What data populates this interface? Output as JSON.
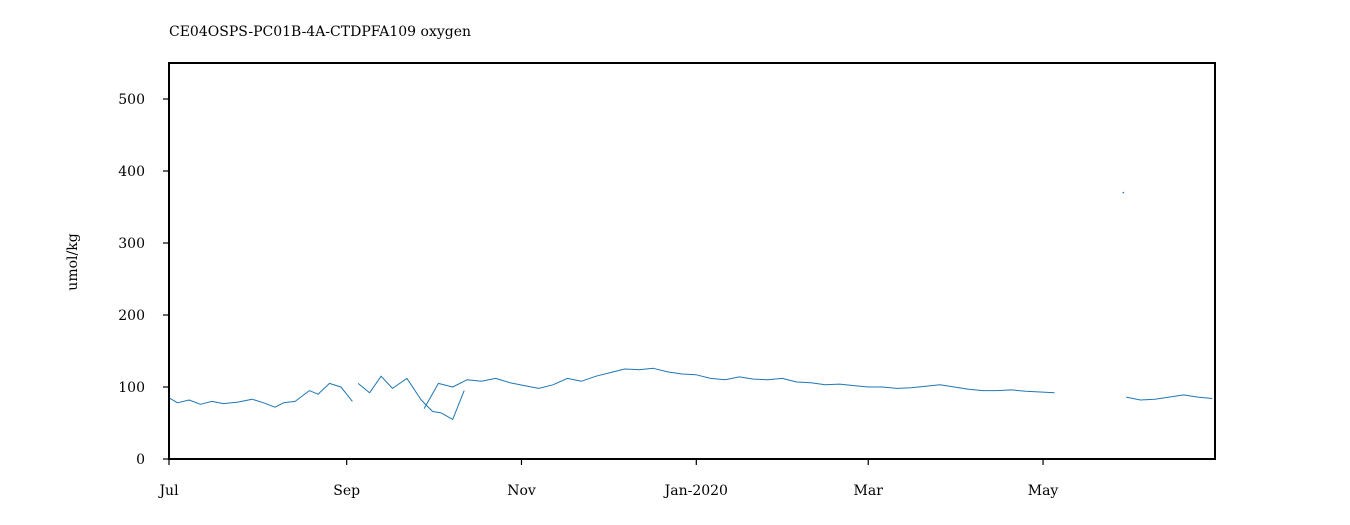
{
  "chart_data": {
    "type": "line",
    "title": "CE04OSPS-PC01B-4A-CTDPFA109 oxygen",
    "xlabel": "",
    "ylabel": "umol/kg",
    "xlim": [
      "2019-07-01",
      "2020-06-30"
    ],
    "ylim": [
      0,
      550
    ],
    "x_ticks": [
      {
        "date": "2019-07-01",
        "label": "Jul"
      },
      {
        "date": "2019-09-01",
        "label": "Sep"
      },
      {
        "date": "2019-11-01",
        "label": "Nov"
      },
      {
        "date": "2020-01-01",
        "label": "Jan-2020"
      },
      {
        "date": "2020-03-01",
        "label": "Mar"
      },
      {
        "date": "2020-05-01",
        "label": "May"
      }
    ],
    "y_ticks": [
      0,
      100,
      200,
      300,
      400,
      500
    ],
    "grid": false,
    "line_color": "#1f77b4",
    "series": [
      {
        "segments": [
          [
            [
              "2019-07-01",
              85
            ],
            [
              "2019-07-04",
              78
            ],
            [
              "2019-07-08",
              82
            ],
            [
              "2019-07-12",
              76
            ],
            [
              "2019-07-16",
              80
            ],
            [
              "2019-07-20",
              77
            ],
            [
              "2019-07-25",
              79
            ],
            [
              "2019-07-30",
              83
            ],
            [
              "2019-08-03",
              78
            ],
            [
              "2019-08-07",
              72
            ],
            [
              "2019-08-10",
              78
            ],
            [
              "2019-08-14",
              80
            ],
            [
              "2019-08-19",
              95
            ],
            [
              "2019-08-22",
              90
            ],
            [
              "2019-08-26",
              105
            ],
            [
              "2019-08-30",
              100
            ],
            [
              "2019-09-01",
              90
            ],
            [
              "2019-09-03",
              80
            ]
          ],
          [
            [
              "2019-09-05",
              105
            ],
            [
              "2019-09-09",
              92
            ],
            [
              "2019-09-13",
              115
            ],
            [
              "2019-09-17",
              98
            ],
            [
              "2019-09-22",
              112
            ],
            [
              "2019-09-27",
              82
            ],
            [
              "2019-10-01",
              66
            ],
            [
              "2019-10-04",
              64
            ],
            [
              "2019-10-08",
              55
            ],
            [
              "2019-10-12",
              95
            ]
          ],
          [
            [
              "2019-09-28",
              70
            ],
            [
              "2019-10-03",
              105
            ],
            [
              "2019-10-08",
              100
            ],
            [
              "2019-10-13",
              110
            ],
            [
              "2019-10-18",
              108
            ],
            [
              "2019-10-23",
              112
            ],
            [
              "2019-10-28",
              106
            ],
            [
              "2019-11-02",
              102
            ],
            [
              "2019-11-07",
              98
            ],
            [
              "2019-11-12",
              103
            ],
            [
              "2019-11-17",
              112
            ],
            [
              "2019-11-22",
              108
            ],
            [
              "2019-11-27",
              115
            ],
            [
              "2019-12-02",
              120
            ],
            [
              "2019-12-07",
              125
            ],
            [
              "2019-12-12",
              124
            ],
            [
              "2019-12-17",
              126
            ],
            [
              "2019-12-22",
              121
            ],
            [
              "2019-12-27",
              118
            ],
            [
              "2020-01-01",
              117
            ],
            [
              "2020-01-06",
              112
            ],
            [
              "2020-01-11",
              110
            ],
            [
              "2020-01-16",
              114
            ],
            [
              "2020-01-21",
              111
            ],
            [
              "2020-01-26",
              110
            ],
            [
              "2020-01-31",
              112
            ],
            [
              "2020-02-05",
              107
            ],
            [
              "2020-02-10",
              106
            ],
            [
              "2020-02-15",
              103
            ],
            [
              "2020-02-20",
              104
            ],
            [
              "2020-02-25",
              102
            ],
            [
              "2020-03-01",
              100
            ],
            [
              "2020-03-06",
              100
            ],
            [
              "2020-03-11",
              98
            ],
            [
              "2020-03-16",
              99
            ],
            [
              "2020-03-21",
              101
            ],
            [
              "2020-03-26",
              103
            ],
            [
              "2020-03-31",
              100
            ],
            [
              "2020-04-05",
              97
            ],
            [
              "2020-04-10",
              95
            ],
            [
              "2020-04-15",
              95
            ],
            [
              "2020-04-20",
              96
            ],
            [
              "2020-04-25",
              94
            ],
            [
              "2020-04-30",
              93
            ],
            [
              "2020-05-05",
              92
            ]
          ],
          [
            [
              "2020-05-29",
              370
            ]
          ],
          [
            [
              "2020-05-30",
              86
            ],
            [
              "2020-06-04",
              82
            ],
            [
              "2020-06-09",
              83
            ],
            [
              "2020-06-14",
              86
            ],
            [
              "2020-06-19",
              89
            ],
            [
              "2020-06-24",
              86
            ],
            [
              "2020-06-29",
              84
            ]
          ]
        ]
      }
    ]
  }
}
